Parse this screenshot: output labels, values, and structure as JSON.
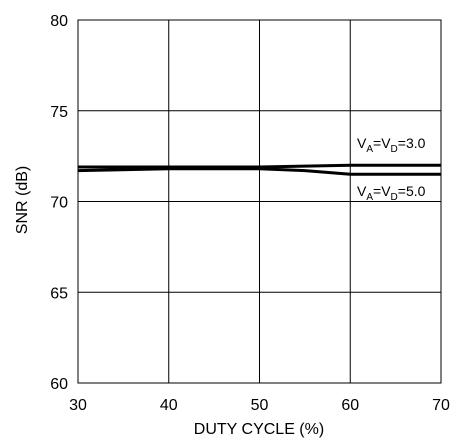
{
  "chart_data": {
    "type": "line",
    "xlabel": "DUTY CYCLE (%)",
    "ylabel": "SNR (dB)",
    "xlim": [
      30,
      70
    ],
    "ylim": [
      60,
      80
    ],
    "x_ticks": [
      "30",
      "40",
      "50",
      "60",
      "70"
    ],
    "y_ticks": [
      "60",
      "65",
      "70",
      "75",
      "80"
    ],
    "grid": true,
    "series": [
      {
        "name": "VA=VD=3.0",
        "label_parts": {
          "v1": "V",
          "s1": "A",
          "eq": "=V",
          "s2": "D",
          "val": "=3.0"
        },
        "x": [
          30,
          40,
          50,
          60,
          70
        ],
        "y": [
          71.9,
          71.9,
          71.9,
          72.0,
          72.0
        ]
      },
      {
        "name": "VA=VD=5.0",
        "label_parts": {
          "v1": "V",
          "s1": "A",
          "eq": "=V",
          "s2": "D",
          "val": "=5.0"
        },
        "x": [
          30,
          40,
          50,
          55,
          60,
          65,
          70
        ],
        "y": [
          71.7,
          71.8,
          71.8,
          71.7,
          71.5,
          71.5,
          71.5
        ]
      }
    ]
  }
}
